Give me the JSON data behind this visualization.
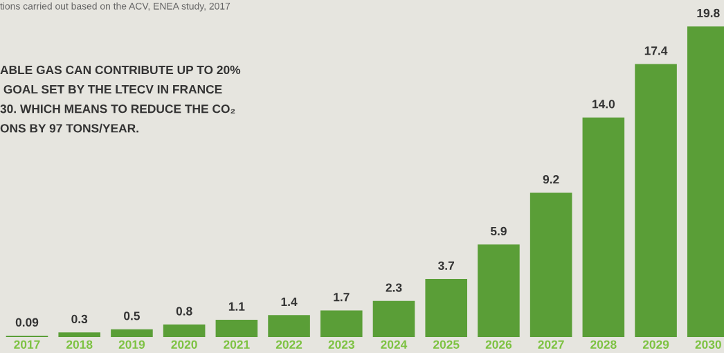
{
  "chart_data": {
    "type": "bar",
    "categories": [
      "2017",
      "2018",
      "2019",
      "2020",
      "2021",
      "2022",
      "2023",
      "2024",
      "2025",
      "2026",
      "2027",
      "2028",
      "2029",
      "2030"
    ],
    "values": [
      0.09,
      0.3,
      0.5,
      0.8,
      1.1,
      1.4,
      1.7,
      2.3,
      3.7,
      5.9,
      9.2,
      14.0,
      17.4,
      19.8
    ],
    "value_labels": [
      "0.09",
      "0.3",
      "0.5",
      "0.8",
      "1.1",
      "1.4",
      "1.7",
      "2.3",
      "3.7",
      "5.9",
      "9.2",
      "14.0",
      "17.4",
      "19.8"
    ],
    "color": "#5a9e37",
    "annotations": [
      "tions carried out based on the ACV, ENEA study, 2017",
      "ABLE GAS CAN CONTRIBUTE UP TO 20%\n GOAL SET BY THE LTECV IN FRANCE\n30. WHICH MEANS TO REDUCE THE CO₂\nONS BY 97 TONS/YEAR."
    ],
    "grid": false,
    "legend": false
  }
}
